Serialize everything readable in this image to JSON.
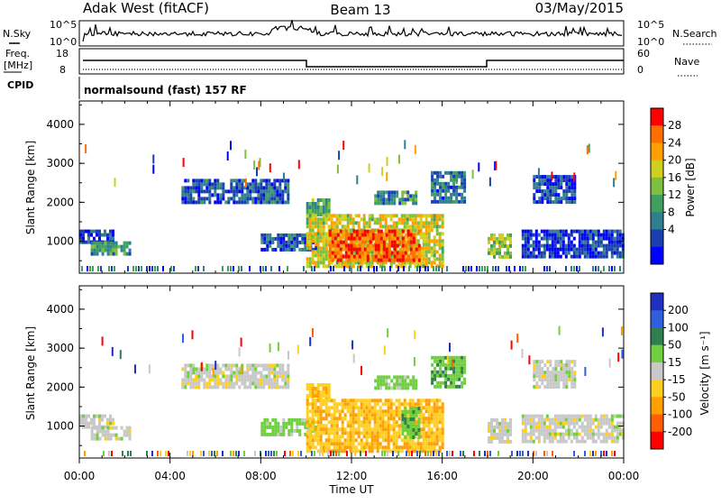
{
  "header": {
    "station": "Adak West (fitACF)",
    "beam": "Beam 13",
    "date": "03/May/2015"
  },
  "strip": {
    "nsky_label": "N.Sky",
    "nsearch_label": "N.Search",
    "nsky_ticks": [
      "10^5",
      "10^0"
    ],
    "nsearch_ticks": [
      "10^5",
      "10^0"
    ],
    "freq_label": "Freq.",
    "freq_unit": "[MHz]",
    "freq_ticks": [
      "18",
      "8"
    ],
    "nave_label": "Nave",
    "nave_ticks": [
      "60",
      "0"
    ],
    "cpid_label": "CPID",
    "cpid_text": "normalsound (fast) 157 RF"
  },
  "axes": {
    "ylabel": "Slant Range [km]",
    "yticks": [
      "4000",
      "3000",
      "2000",
      "1000"
    ],
    "xlabel": "Time UT",
    "xticks": [
      "00:00",
      "04:00",
      "08:00",
      "12:00",
      "16:00",
      "20:00",
      "00:00"
    ]
  },
  "colors": {
    "power": [
      "#0000ff",
      "#1a3fb0",
      "#2f7f8f",
      "#3f9f5f",
      "#7fbf3f",
      "#cfcf1f",
      "#ff9f00",
      "#ff6f00",
      "#ff0000"
    ],
    "velocity": [
      "#1f2fbf",
      "#2f5fdf",
      "#2f7f4f",
      "#6fcf3f",
      "#c8c8c8",
      "#ffcf1f",
      "#ff9f00",
      "#ff5f00",
      "#ff0000"
    ]
  },
  "chart_data": [
    {
      "type": "heatmap",
      "title": "Power",
      "xlabel": "Time UT",
      "ylabel": "Slant Range [km]",
      "colorbar_label": "Power [dB]",
      "colorbar_ticks": [
        "28",
        "24",
        "20",
        "16",
        "12",
        "8",
        "4"
      ],
      "colorbar_range": [
        0,
        30
      ],
      "xlim": [
        0,
        24
      ],
      "ylim": [
        180,
        4600
      ],
      "regions": [
        {
          "t": [
            0,
            1.5
          ],
          "r": [
            1000,
            1300
          ],
          "level": 4
        },
        {
          "t": [
            0.5,
            2.2
          ],
          "r": [
            700,
            1000
          ],
          "level": 10
        },
        {
          "t": [
            4.5,
            9.2
          ],
          "r": [
            2000,
            2600
          ],
          "level": 6
        },
        {
          "t": [
            10.0,
            11.0
          ],
          "r": [
            1700,
            2100
          ],
          "level": 12
        },
        {
          "t": [
            13.0,
            14.8
          ],
          "r": [
            2000,
            2300
          ],
          "level": 10
        },
        {
          "t": [
            8.0,
            10.5
          ],
          "r": [
            800,
            1200
          ],
          "level": 6
        },
        {
          "t": [
            10.0,
            16.0
          ],
          "r": [
            400,
            1700
          ],
          "level": 18
        },
        {
          "t": [
            11.0,
            15.0
          ],
          "r": [
            500,
            1300
          ],
          "level": 26
        },
        {
          "t": [
            15.5,
            17.0
          ],
          "r": [
            2000,
            2800
          ],
          "level": 8
        },
        {
          "t": [
            18.0,
            19.0
          ],
          "r": [
            600,
            1200
          ],
          "level": 16
        },
        {
          "t": [
            19.5,
            24.0
          ],
          "r": [
            600,
            1300
          ],
          "level": 4
        },
        {
          "t": [
            20.0,
            21.8
          ],
          "r": [
            2000,
            2700
          ],
          "level": 5
        }
      ]
    },
    {
      "type": "heatmap",
      "title": "Velocity",
      "xlabel": "Time UT",
      "ylabel": "Slant Range [km]",
      "colorbar_label": "Velocity [m s⁻¹]",
      "colorbar_ticks": [
        "200",
        "100",
        "50",
        "15",
        "-15",
        "-50",
        "-100",
        "-200"
      ],
      "colorbar_range": [
        -250,
        250
      ],
      "xlim": [
        0,
        24
      ],
      "ylim": [
        180,
        4600
      ],
      "regions": [
        {
          "t": [
            0,
            1.5
          ],
          "r": [
            1000,
            1300
          ],
          "v": 0
        },
        {
          "t": [
            0.5,
            2.2
          ],
          "r": [
            700,
            1000
          ],
          "v": 0
        },
        {
          "t": [
            4.5,
            9.2
          ],
          "r": [
            2000,
            2600
          ],
          "v": 0
        },
        {
          "t": [
            10.0,
            11.0
          ],
          "r": [
            1700,
            2100
          ],
          "v": -40
        },
        {
          "t": [
            13.0,
            14.8
          ],
          "r": [
            2000,
            2300
          ],
          "v": 30
        },
        {
          "t": [
            8.0,
            10.5
          ],
          "r": [
            800,
            1200
          ],
          "v": 30
        },
        {
          "t": [
            10.0,
            16.0
          ],
          "r": [
            400,
            1700
          ],
          "v": -45
        },
        {
          "t": [
            14.2,
            15.0
          ],
          "r": [
            700,
            1500
          ],
          "v": 40
        },
        {
          "t": [
            15.5,
            17.0
          ],
          "r": [
            2000,
            2800
          ],
          "v": 40
        },
        {
          "t": [
            18.0,
            19.0
          ],
          "r": [
            600,
            1200
          ],
          "v": 0
        },
        {
          "t": [
            19.5,
            24.0
          ],
          "r": [
            600,
            1300
          ],
          "v": 0
        },
        {
          "t": [
            20.0,
            21.8
          ],
          "r": [
            2000,
            2700
          ],
          "v": 0
        }
      ]
    }
  ]
}
